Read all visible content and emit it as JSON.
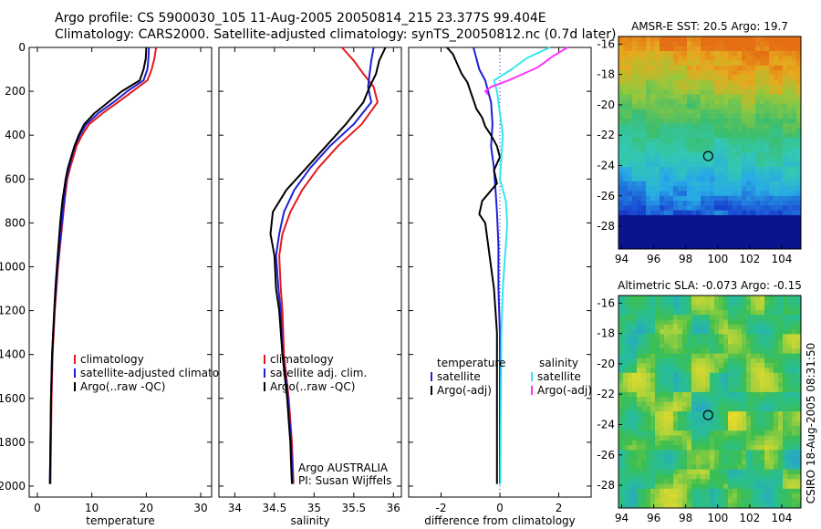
{
  "header": {
    "line1": "Argo profile: CS 5900030_105 11-Aug-2005 20050814_215 23.377S 99.404E",
    "line2": "Climatology: CARS2000. Satellite-adjusted climatology: synTS_20050812.nc (0.7d later)"
  },
  "credit": "CSIRO 18-Aug-2005 08:31:50",
  "depth_ticks": [
    "0",
    "200",
    "400",
    "600",
    "800",
    "1000",
    "1200",
    "1400",
    "1600",
    "1800",
    "2000"
  ],
  "chart_data": [
    {
      "type": "line",
      "id": "temperature",
      "xlabel": "temperature",
      "ylabel": "",
      "xlim": [
        -1.5,
        32
      ],
      "ylim": [
        2050,
        0
      ],
      "x_ticks": [
        0,
        10,
        20,
        30
      ],
      "y_ticks": [
        0,
        200,
        400,
        600,
        800,
        1000,
        1200,
        1400,
        1600,
        1800,
        2000
      ],
      "legend": {
        "position": "lower-right",
        "entries": [
          {
            "label": "climatology",
            "color": "#e31a1c"
          },
          {
            "label": "satellite-adjusted climatology",
            "color": "#1f1fd6"
          },
          {
            "label": "Argo(..raw -QC)",
            "color": "#000000"
          }
        ]
      },
      "series": [
        {
          "name": "climatology",
          "color": "#e31a1c",
          "x": [
            21.8,
            21.5,
            21.0,
            20.2,
            17.5,
            14.8,
            12.0,
            9.5,
            8.2,
            7.2,
            6.6,
            6.0,
            5.5,
            5.0,
            4.6,
            4.2,
            3.8,
            3.5,
            3.2,
            3.0,
            2.8,
            2.7,
            2.6,
            2.5,
            2.4
          ],
          "y": [
            0,
            50,
            100,
            150,
            200,
            250,
            300,
            350,
            400,
            450,
            500,
            550,
            600,
            700,
            800,
            900,
            1000,
            1100,
            1200,
            1300,
            1400,
            1500,
            1600,
            1800,
            1990
          ]
        },
        {
          "name": "satellite-adjusted climatology",
          "color": "#1f1fd6",
          "x": [
            20.5,
            20.4,
            20.2,
            19.5,
            16.5,
            14.0,
            11.2,
            9.0,
            7.8,
            6.9,
            6.3,
            5.8,
            5.3,
            4.9,
            4.5,
            4.1,
            3.7,
            3.4,
            3.1,
            2.9,
            2.7,
            2.6,
            2.5,
            2.4,
            2.3
          ],
          "y": [
            0,
            50,
            100,
            150,
            200,
            250,
            300,
            350,
            400,
            450,
            500,
            550,
            600,
            700,
            800,
            900,
            1000,
            1100,
            1200,
            1300,
            1400,
            1500,
            1600,
            1800,
            1990
          ]
        },
        {
          "name": "Argo(..raw -QC)",
          "color": "#000000",
          "x": [
            20.0,
            19.9,
            19.5,
            18.8,
            15.5,
            13.0,
            10.5,
            8.6,
            7.6,
            6.8,
            6.2,
            5.6,
            5.2,
            4.6,
            4.2,
            3.9,
            3.6,
            3.3,
            3.1,
            2.9,
            2.7,
            2.6,
            2.5,
            2.4,
            2.3
          ],
          "y": [
            0,
            50,
            100,
            150,
            200,
            250,
            300,
            350,
            400,
            450,
            500,
            550,
            600,
            700,
            800,
            900,
            1000,
            1100,
            1200,
            1300,
            1400,
            1500,
            1600,
            1800,
            1990
          ]
        }
      ]
    },
    {
      "type": "line",
      "id": "salinity",
      "xlabel": "salinity",
      "ylabel": "",
      "xlim": [
        33.8,
        36.1
      ],
      "ylim": [
        2050,
        0
      ],
      "x_ticks": [
        34,
        34.5,
        35,
        35.5,
        36
      ],
      "legend": {
        "position": "lower-right",
        "entries": [
          {
            "label": "climatology",
            "color": "#e31a1c"
          },
          {
            "label": "satellite adj. clim.",
            "color": "#1f1fd6"
          },
          {
            "label": "Argo(..raw -QC)",
            "color": "#000000"
          }
        ]
      },
      "notes": [
        "Argo AUSTRALIA",
        "PI: Susan Wijffels"
      ],
      "series": [
        {
          "name": "climatology",
          "color": "#e31a1c",
          "x": [
            35.35,
            35.5,
            35.62,
            35.75,
            35.8,
            35.6,
            35.3,
            35.05,
            34.85,
            34.7,
            34.6,
            34.56,
            34.58,
            34.6,
            34.62,
            34.65,
            34.68,
            34.7,
            34.72,
            34.73,
            34.74
          ],
          "y": [
            0,
            60,
            120,
            180,
            250,
            350,
            450,
            550,
            650,
            750,
            850,
            950,
            1100,
            1200,
            1400,
            1500,
            1600,
            1700,
            1800,
            1900,
            1990
          ]
        },
        {
          "name": "satellite adj. clim.",
          "color": "#1f1fd6",
          "x": [
            35.75,
            35.72,
            35.7,
            35.68,
            35.72,
            35.5,
            35.2,
            34.95,
            34.75,
            34.62,
            34.56,
            34.52,
            34.55,
            34.58,
            34.6,
            34.64,
            34.67,
            34.69,
            34.71,
            34.72,
            34.73
          ],
          "y": [
            0,
            60,
            120,
            180,
            250,
            350,
            450,
            550,
            650,
            750,
            850,
            950,
            1100,
            1200,
            1400,
            1500,
            1600,
            1700,
            1800,
            1900,
            1990
          ]
        },
        {
          "name": "Argo(..raw -QC)",
          "color": "#000000",
          "x": [
            35.9,
            35.82,
            35.78,
            35.7,
            35.62,
            35.4,
            35.15,
            34.9,
            34.65,
            34.48,
            34.45,
            34.5,
            34.52,
            34.56,
            34.6,
            34.63,
            34.66,
            34.68,
            34.7,
            34.71,
            34.72
          ],
          "y": [
            0,
            60,
            120,
            180,
            250,
            350,
            450,
            550,
            650,
            750,
            850,
            950,
            1100,
            1200,
            1400,
            1500,
            1600,
            1700,
            1800,
            1900,
            1990
          ]
        }
      ]
    },
    {
      "type": "line",
      "id": "difference",
      "xlabel": "difference from climatology",
      "ylabel": "",
      "xlim": [
        -3.1,
        3.1
      ],
      "ylim": [
        2050,
        0
      ],
      "x_ticks": [
        -2,
        0,
        2
      ],
      "legend": {
        "position": "lower",
        "columns": [
          {
            "title": "temperature",
            "entries": [
              {
                "label": "satellite",
                "color": "#1f1fd6"
              },
              {
                "label": "Argo(-adj)",
                "color": "#000000"
              }
            ]
          },
          {
            "title": "salinity",
            "entries": [
              {
                "label": "satellite",
                "color": "#33e6f0"
              },
              {
                "label": "Argo(-adj)",
                "color": "#ff33ff"
              }
            ]
          }
        ]
      },
      "series": [
        {
          "name": "temperature satellite",
          "color": "#1f1fd6",
          "x": [
            -0.9,
            -0.8,
            -0.7,
            -0.5,
            -0.3,
            -0.25,
            -0.3,
            -0.2,
            -0.15,
            -0.1,
            -0.05,
            -0.05,
            0.0,
            0.0,
            0.0,
            0.0
          ],
          "y": [
            0,
            50,
            100,
            150,
            250,
            350,
            450,
            550,
            650,
            750,
            900,
            1100,
            1300,
            1500,
            1700,
            1990
          ]
        },
        {
          "name": "temperature Argo(-adj)",
          "color": "#000000",
          "x": [
            -1.8,
            -1.6,
            -1.5,
            -1.4,
            -1.3,
            -1.1,
            -1.0,
            -0.9,
            -0.8,
            -0.6,
            -0.5,
            -0.3,
            -0.1,
            0.0,
            -0.2,
            -0.1,
            -0.6,
            -0.7,
            -0.5,
            -0.4,
            -0.3,
            -0.2,
            -0.1,
            -0.1,
            -0.1
          ],
          "y": [
            0,
            30,
            60,
            90,
            120,
            160,
            200,
            240,
            280,
            320,
            360,
            400,
            450,
            500,
            560,
            620,
            700,
            760,
            800,
            900,
            1000,
            1100,
            1300,
            1600,
            1990
          ]
        },
        {
          "name": "salinity satellite",
          "color": "#33e6f0",
          "x": [
            1.7,
            0.9,
            0.4,
            -0.2,
            -0.1,
            0.0,
            0.1,
            0.05,
            0.0,
            0.2,
            0.25,
            0.2,
            0.15,
            0.1,
            0.05,
            0.02
          ],
          "y": [
            0,
            50,
            100,
            150,
            200,
            300,
            400,
            500,
            600,
            700,
            800,
            900,
            1000,
            1100,
            1300,
            1990
          ]
        },
        {
          "name": "salinity Argo(-adj)",
          "color": "#ff33ff",
          "x": [
            2.3,
            1.8,
            1.3,
            0.8,
            0.3,
            -0.3,
            -0.5,
            -0.4
          ],
          "y": [
            0,
            40,
            90,
            120,
            150,
            180,
            200,
            215
          ]
        }
      ]
    },
    {
      "type": "heatmap",
      "id": "sst_map",
      "title": "AMSR-E SST: 20.5 Argo: 19.7",
      "x_ticks": [
        94,
        96,
        98,
        100,
        102,
        104
      ],
      "y_ticks": [
        -16,
        -18,
        -20,
        -22,
        -24,
        -26,
        -28
      ],
      "xlim": [
        93.8,
        105.2
      ],
      "ylim": [
        -29.5,
        -15.5
      ],
      "float_position": {
        "lon": 99.404,
        "lat": -23.377
      }
    },
    {
      "type": "heatmap",
      "id": "sla_map",
      "title": "Altimetric SLA: -0.073 Argo: -0.15",
      "x_ticks": [
        94,
        96,
        98,
        100,
        102,
        104
      ],
      "y_ticks": [
        -16,
        -18,
        -20,
        -22,
        -24,
        -26,
        -28
      ],
      "xlim": [
        93.8,
        105.2
      ],
      "ylim": [
        -29.5,
        -15.5
      ],
      "float_position": {
        "lon": 99.404,
        "lat": -23.377
      }
    }
  ]
}
